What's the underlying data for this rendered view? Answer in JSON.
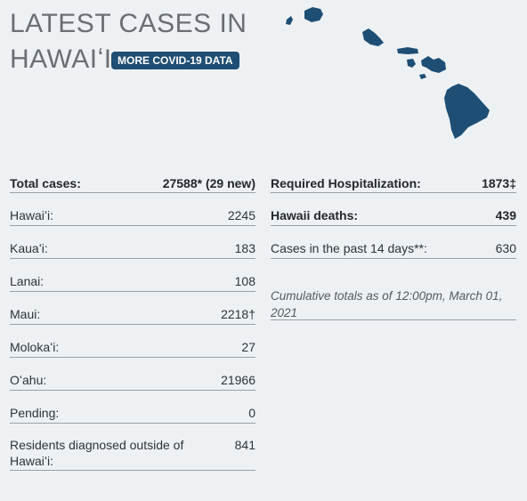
{
  "header": {
    "title_line1": "LATEST CASES IN",
    "title_line2": "HAWAIʻI",
    "more_button": "MORE COVID-19 DATA"
  },
  "map": {
    "icon": "hawaii-islands-map",
    "color": "#1e4e74"
  },
  "left_stats": [
    {
      "label": "Total cases:",
      "value": "27588* (29 new)"
    },
    {
      "label": "Hawaiʻi:",
      "value": "2245"
    },
    {
      "label": "Kauaʻi:",
      "value": "183"
    },
    {
      "label": "Lanai:",
      "value": "108"
    },
    {
      "label": "Maui:",
      "value": "2218†"
    },
    {
      "label": "Molokaʻi:",
      "value": "27"
    },
    {
      "label": "Oʻahu:",
      "value": "21966"
    },
    {
      "label": "Pending:",
      "value": "0"
    },
    {
      "label": "Residents diagnosed outside of Hawaiʻi:",
      "value": "841"
    }
  ],
  "right_stats": [
    {
      "label": "Required Hospitalization:",
      "value": "1873‡"
    },
    {
      "label": "Hawaii deaths:",
      "value": "439"
    },
    {
      "label": "Cases in the past 14 days**:",
      "value": "630"
    }
  ],
  "note": "Cumulative totals as of 12:00pm, March 01, 2021"
}
